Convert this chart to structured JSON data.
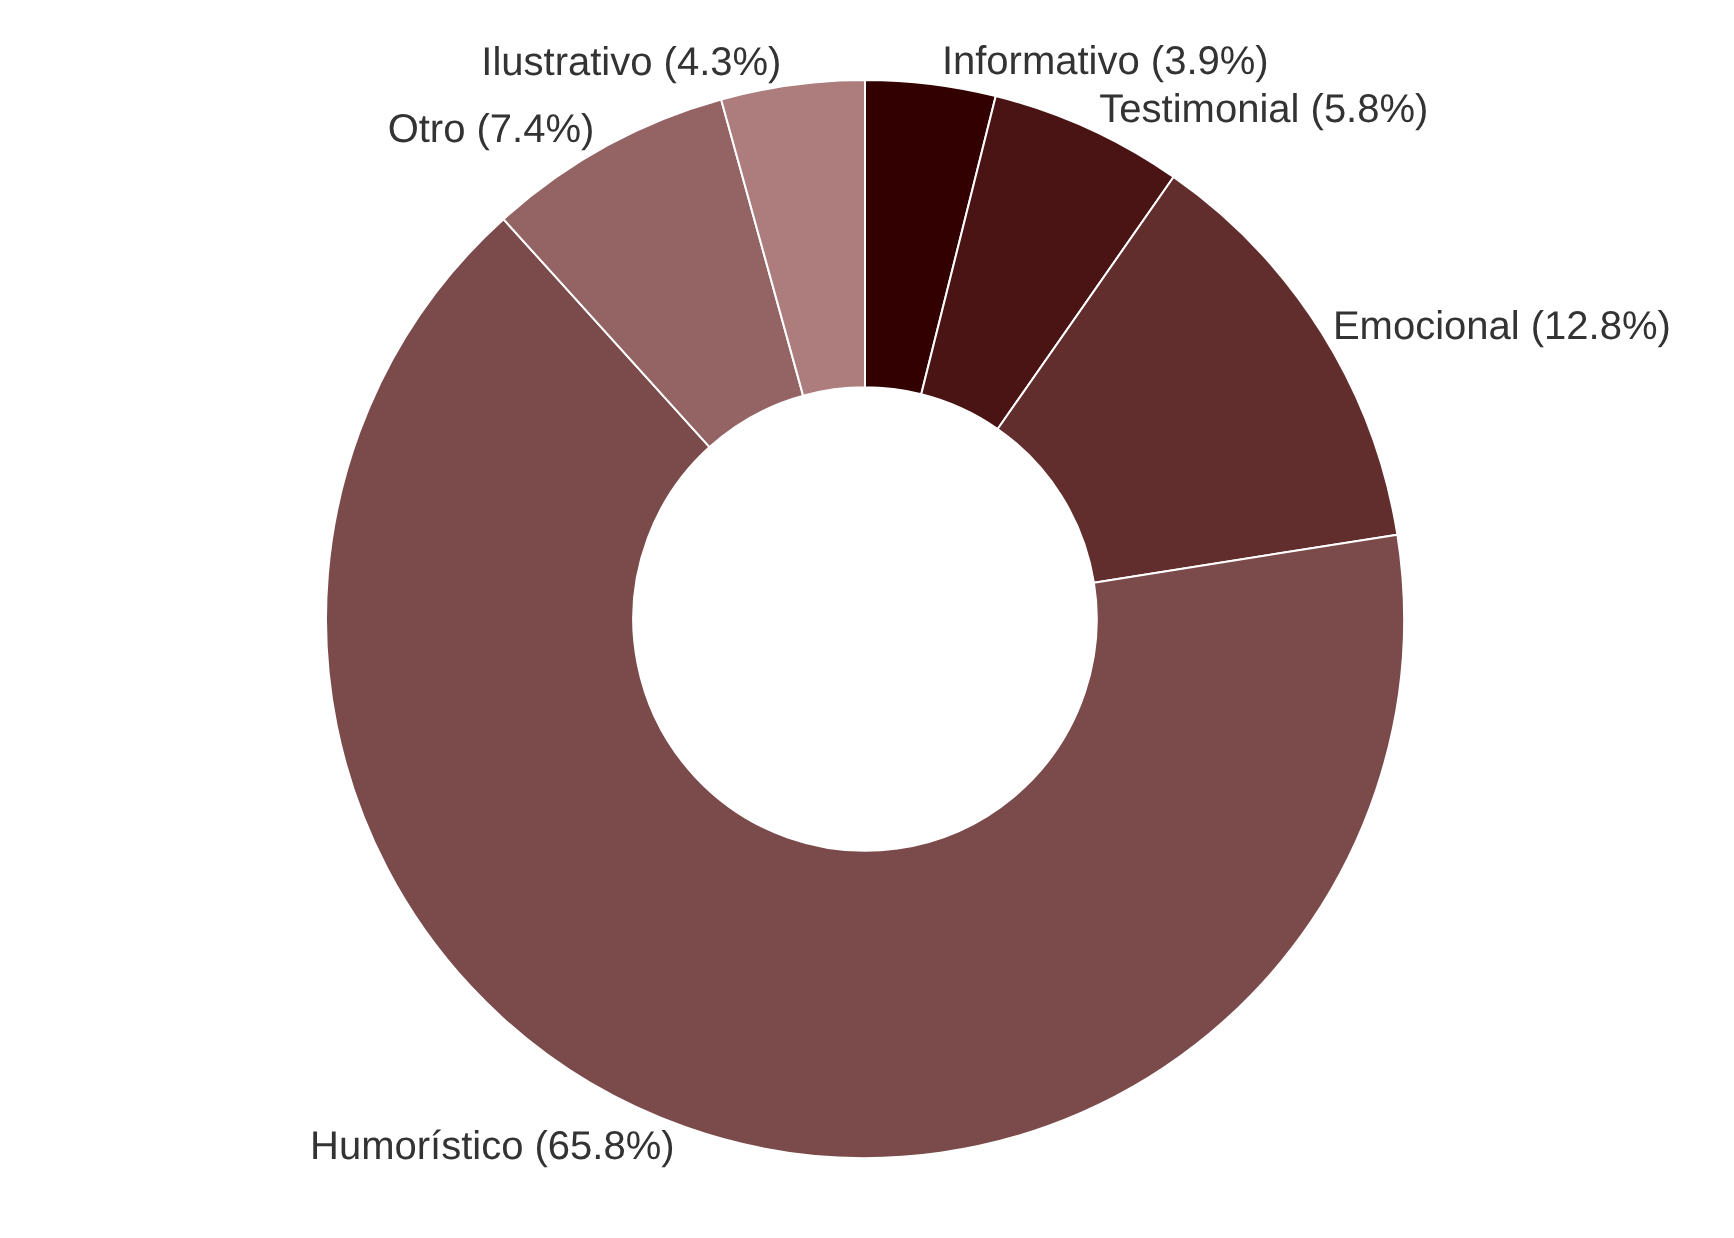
{
  "chart_data": {
    "type": "donut",
    "categories": [
      "Informativo",
      "Testimonial",
      "Emocional",
      "Humorístico",
      "Otro",
      "Ilustrativo"
    ],
    "values": [
      3.9,
      5.8,
      12.8,
      65.8,
      7.4,
      4.3
    ],
    "value_labels": [
      "(3.9%)",
      "(5.8%)",
      "(12.8%)",
      "(65.8%)",
      "(7.4%)",
      "(4.3%)"
    ],
    "colors": [
      "#330000",
      "#4a1414",
      "#622d2d",
      "#7b4a4a",
      "#946363",
      "#ad7c7c"
    ],
    "legend": false
  }
}
